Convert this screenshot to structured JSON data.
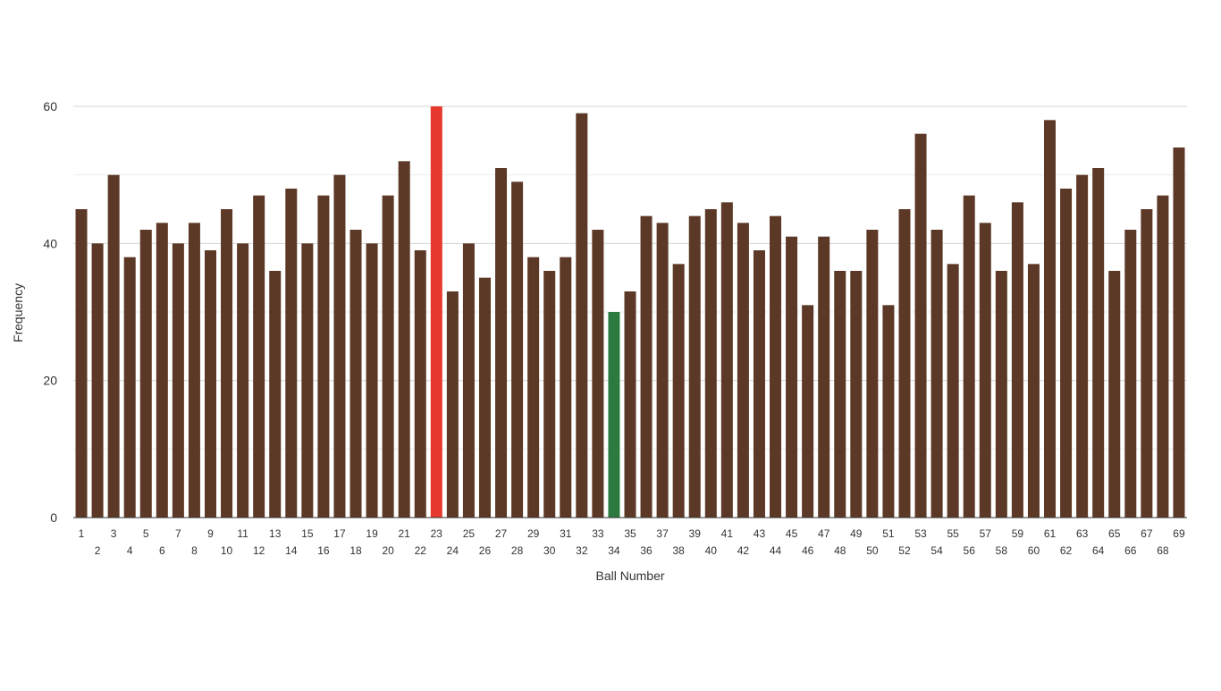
{
  "chart_data": {
    "type": "bar",
    "title": "",
    "xlabel": "Ball Number",
    "ylabel": "Frequency",
    "ylim": [
      0,
      60
    ],
    "yticks": [
      0,
      20,
      40,
      60
    ],
    "grid": true,
    "categories": [
      "1",
      "2",
      "3",
      "4",
      "5",
      "6",
      "7",
      "8",
      "9",
      "10",
      "11",
      "12",
      "13",
      "14",
      "15",
      "16",
      "17",
      "18",
      "19",
      "20",
      "21",
      "22",
      "23",
      "24",
      "25",
      "26",
      "27",
      "28",
      "29",
      "30",
      "31",
      "32",
      "33",
      "34",
      "35",
      "36",
      "37",
      "38",
      "39",
      "40",
      "41",
      "42",
      "43",
      "44",
      "45",
      "46",
      "47",
      "48",
      "49",
      "50",
      "51",
      "52",
      "53",
      "54",
      "55",
      "56",
      "57",
      "58",
      "59",
      "60",
      "61",
      "62",
      "63",
      "64",
      "65",
      "66",
      "67",
      "68",
      "69"
    ],
    "values": [
      45,
      40,
      50,
      38,
      42,
      43,
      40,
      43,
      39,
      45,
      40,
      47,
      36,
      48,
      40,
      47,
      50,
      42,
      40,
      47,
      52,
      39,
      60,
      33,
      40,
      35,
      51,
      49,
      38,
      36,
      38,
      59,
      42,
      30,
      33,
      44,
      43,
      37,
      44,
      45,
      46,
      43,
      39,
      44,
      41,
      31,
      41,
      36,
      36,
      42,
      31,
      45,
      56,
      42,
      37,
      47,
      43,
      36,
      46,
      37,
      58,
      48,
      50,
      51,
      36,
      42,
      45,
      47,
      54
    ],
    "colors": {
      "default": "#5c3826",
      "highest": "#e8392f",
      "lowest": "#2c7a3f"
    },
    "highlights": {
      "highest": "23",
      "lowest": "34"
    }
  }
}
